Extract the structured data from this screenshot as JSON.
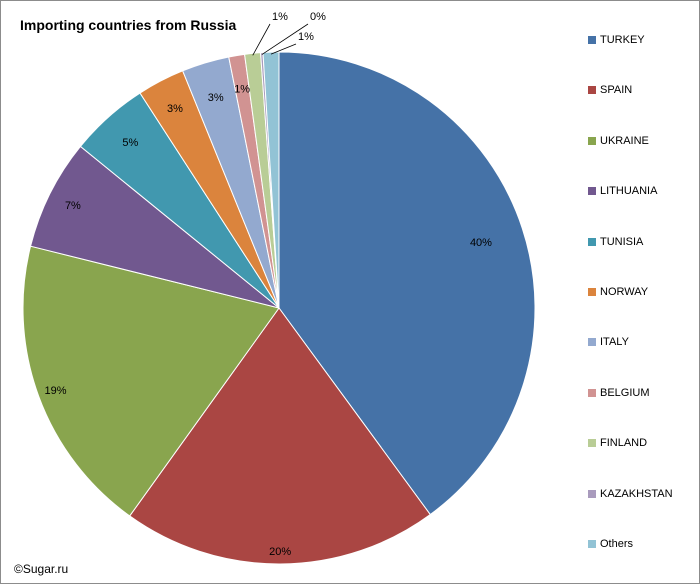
{
  "chart_data": {
    "type": "pie",
    "title": "Importing countries from Russia",
    "categories": [
      "TURKEY",
      "SPAIN",
      "UKRAINE",
      "LITHUANIA",
      "TUNISIA",
      "NORWAY",
      "ITALY",
      "BELGIUM",
      "FINLAND",
      "KAZAKHSTAN",
      "Others"
    ],
    "values": [
      40,
      20,
      19,
      7,
      5,
      3,
      3,
      1,
      1,
      0,
      1
    ],
    "data_labels": [
      "40%",
      "20%",
      "19%",
      "7%",
      "5%",
      "3%",
      "3%",
      "1%",
      "1%",
      "0%",
      "1%"
    ],
    "legend_position": "right"
  },
  "colors": [
    "#4572a7",
    "#aa4643",
    "#89a54e",
    "#71588f",
    "#4198af",
    "#db843d",
    "#93a9cf",
    "#d19392",
    "#b9cd96",
    "#a99bbd",
    "#92c3d5"
  ],
  "footer": {
    "copyright": "©Sugar.ru"
  }
}
